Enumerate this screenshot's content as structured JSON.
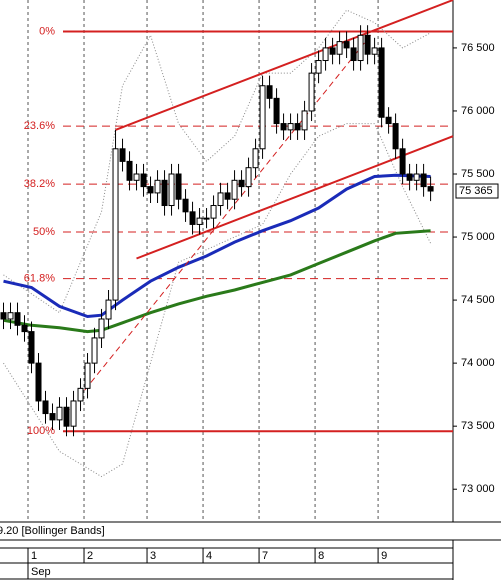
{
  "chart_data": {
    "type": "candlestick",
    "xlim": [
      -0.5,
      64.2
    ],
    "ylim": [
      72740,
      76880
    ],
    "yticks": [
      {
        "value": 73000,
        "label": "73 000"
      },
      {
        "value": 73500,
        "label": "73 500"
      },
      {
        "value": 74000,
        "label": "74 000"
      },
      {
        "value": 74500,
        "label": "74 500"
      },
      {
        "value": 75000,
        "label": "75 000"
      },
      {
        "value": 75500,
        "label": "75 500"
      },
      {
        "value": 76000,
        "label": "76 000"
      },
      {
        "value": 76500,
        "label": "76 500"
      }
    ],
    "open": [
      74400,
      74350,
      74400,
      74300,
      74250,
      74000,
      73700,
      73600,
      73550,
      73650,
      73500,
      73700,
      73800,
      74000,
      74200,
      74350,
      74500,
      75700,
      75600,
      75450,
      75500,
      75400,
      75350,
      75450,
      75250,
      75500,
      75300,
      75200,
      75100,
      75150,
      75150,
      75250,
      75350,
      75300,
      75450,
      75400,
      75550,
      75700,
      76200,
      76100,
      75900,
      75850,
      75900,
      75850,
      76000,
      76300,
      76400,
      76500,
      76450,
      76550,
      76500,
      76400,
      76600,
      76450,
      76500,
      75950,
      75900,
      75700,
      75500,
      75450,
      75500,
      75400
    ],
    "high": [
      74480,
      74480,
      74480,
      74380,
      74330,
      74080,
      73780,
      73680,
      73730,
      73730,
      73780,
      73880,
      74080,
      74280,
      74430,
      74580,
      75850,
      75780,
      75680,
      75580,
      75580,
      75480,
      75530,
      75530,
      75580,
      75580,
      75380,
      75280,
      75230,
      75230,
      75330,
      75430,
      75430,
      75530,
      75530,
      75630,
      75780,
      76280,
      76280,
      76180,
      75980,
      75980,
      75980,
      76080,
      76380,
      76480,
      76580,
      76580,
      76630,
      76630,
      76580,
      76680,
      76680,
      76580,
      76580,
      76030,
      75980,
      75780,
      75580,
      75580,
      75580,
      75480
    ],
    "low": [
      74270,
      74270,
      74220,
      74170,
      73920,
      73620,
      73520,
      73470,
      73470,
      73420,
      73420,
      73620,
      73720,
      73920,
      74120,
      74270,
      74420,
      75520,
      75370,
      75370,
      75320,
      75270,
      75270,
      75170,
      75170,
      75220,
      75120,
      75020,
      75020,
      75070,
      75070,
      75170,
      75220,
      75220,
      75320,
      75320,
      75470,
      75620,
      76020,
      75820,
      75770,
      75770,
      75770,
      75770,
      75920,
      76220,
      76320,
      76370,
      76370,
      76420,
      76320,
      76320,
      76370,
      76370,
      75870,
      75820,
      75620,
      75420,
      75370,
      75370,
      75320,
      75285
    ],
    "close": [
      74350,
      74400,
      74300,
      74250,
      74000,
      73700,
      73600,
      73550,
      73650,
      73500,
      73700,
      73800,
      74000,
      74200,
      74350,
      74500,
      75700,
      75600,
      75450,
      75500,
      75400,
      75350,
      75450,
      75250,
      75500,
      75300,
      75200,
      75100,
      75150,
      75150,
      75250,
      75350,
      75300,
      75450,
      75400,
      75550,
      75700,
      76200,
      76100,
      75900,
      75850,
      75900,
      75850,
      76000,
      76300,
      76400,
      76500,
      76450,
      76550,
      76500,
      76400,
      76600,
      76450,
      76500,
      75950,
      75900,
      75700,
      75500,
      75450,
      75500,
      75400,
      75365
    ],
    "lines": [
      {
        "color": "#888888",
        "dash": "1 2",
        "width": 1,
        "x": [
          0,
          8,
          14,
          17,
          21,
          25,
          29,
          33,
          37,
          41,
          45,
          49,
          53,
          57,
          61
        ],
        "values": [
          74700,
          74400,
          75200,
          76200,
          76600,
          75900,
          75600,
          75800,
          76300,
          76300,
          76500,
          76800,
          76700,
          76500,
          76620
        ]
      },
      {
        "color": "#888888",
        "dash": "1 2",
        "width": 1,
        "x": [
          0,
          8,
          14,
          17,
          21,
          25,
          29,
          33,
          37,
          41,
          45,
          49,
          53,
          57,
          61
        ],
        "values": [
          74000,
          73300,
          73100,
          73200,
          74000,
          74800,
          74900,
          75000,
          75100,
          75500,
          75800,
          75900,
          75900,
          75400,
          74950
        ]
      },
      {
        "color": "#1a2bb8",
        "width": 3,
        "x": [
          0,
          4,
          8,
          12,
          14,
          17,
          21,
          25,
          29,
          33,
          37,
          41,
          45,
          49,
          53,
          56,
          61
        ],
        "values": [
          74650,
          74600,
          74450,
          74370,
          74380,
          74500,
          74650,
          74760,
          74850,
          74960,
          75050,
          75130,
          75230,
          75380,
          75480,
          75490,
          75480
        ]
      },
      {
        "color": "#2a7a1a",
        "width": 3,
        "x": [
          0,
          4,
          8,
          12,
          14,
          17,
          21,
          25,
          29,
          33,
          37,
          41,
          45,
          49,
          53,
          56,
          61
        ],
        "values": [
          74340,
          74300,
          74280,
          74250,
          74260,
          74320,
          74400,
          74470,
          74530,
          74580,
          74640,
          74700,
          74790,
          74880,
          74970,
          75030,
          75050
        ]
      },
      {
        "color": "#d42020",
        "width": 2,
        "x": [
          16,
          64.2
        ],
        "values": [
          75850,
          76880
        ]
      },
      {
        "color": "#d42020",
        "width": 2,
        "x": [
          19,
          64.2
        ],
        "values": [
          74830,
          75800
        ]
      },
      {
        "color": "#d42020",
        "dash": "6 4",
        "width": 1,
        "x": [
          8.9,
          53
        ],
        "values": [
          73600,
          76640
        ]
      }
    ],
    "fib_levels": [
      {
        "label": "0%",
        "value": 76630,
        "solid": true
      },
      {
        "label": "23.6%",
        "value": 75880,
        "solid": false
      },
      {
        "label": "38.2%",
        "value": 75420,
        "solid": false
      },
      {
        "label": "50%",
        "value": 75040,
        "solid": false
      },
      {
        "label": "61.8%",
        "value": 74670,
        "solid": false
      },
      {
        "label": "100%",
        "value": 73460,
        "solid": true
      }
    ],
    "fib_color": "#d42020",
    "last_price": 75365,
    "last_price_label": "75 365",
    "indicator_label": "9.20 [Bollinger Bands]",
    "days": [
      "1",
      "2",
      "3",
      "4",
      "7",
      "8",
      "9"
    ],
    "day_start": [
      4,
      12,
      21,
      29,
      37,
      45,
      54
    ],
    "month": "Sep"
  }
}
